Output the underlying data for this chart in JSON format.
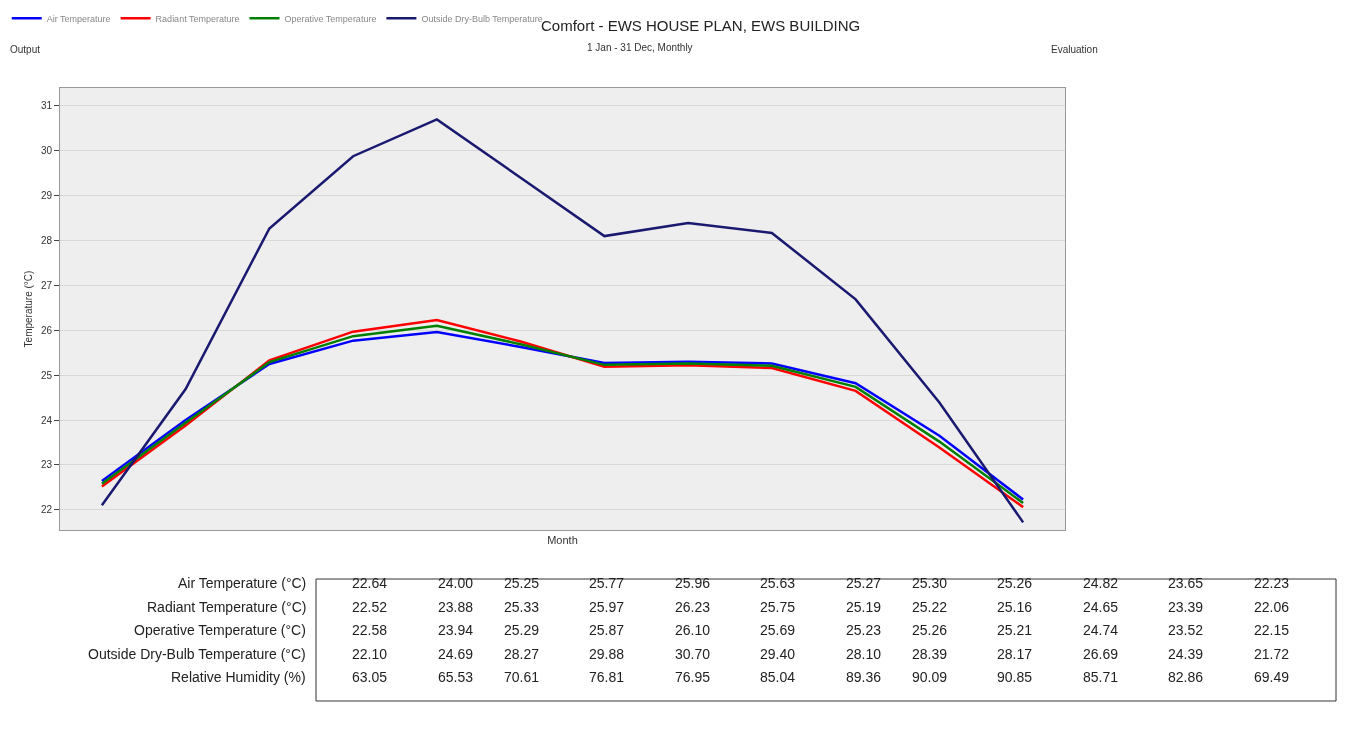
{
  "chart_data": {
    "type": "line",
    "title": "Comfort - EWS HOUSE PLAN, EWS BUILDING",
    "subtitle": "1 Jan - 31 Dec, Monthly",
    "xlabel": "Month",
    "ylabel": "Temperature (°C)",
    "annotations": [
      "Output",
      "Evaluation",
      "Air Temperature (°C)",
      "Radiant Temperature (°C)",
      "Operative Temperature (°C)",
      "Outside Dry-Bulb Temperature (°C)",
      "Relative Humidity (%)",
      "22.64",
      "24.00",
      "25.25",
      "25.77",
      "25.96",
      "25.63",
      "25.27",
      "25.30",
      "25.26",
      "24.82",
      "23.65",
      "22.23",
      "22.52",
      "23.88",
      "25.33",
      "25.97",
      "26.23",
      "25.75",
      "25.19",
      "25.22",
      "25.16",
      "24.65",
      "23.39",
      "22.06",
      "22.58",
      "23.94",
      "25.29",
      "25.87",
      "26.10",
      "25.69",
      "25.23",
      "25.26",
      "25.21",
      "24.74",
      "23.52",
      "22.15",
      "22.10",
      "24.69",
      "28.27",
      "29.88",
      "30.70",
      "29.40",
      "28.10",
      "28.39",
      "28.17",
      "26.69",
      "24.39",
      "21.72",
      "63.05",
      "65.53",
      "70.61",
      "76.81",
      "76.95",
      "85.04",
      "89.36",
      "90.09",
      "90.85",
      "85.71",
      "82.86",
      "69.49"
    ],
    "categories": [
      null,
      null,
      null,
      null,
      null,
      null,
      null,
      null,
      null,
      null,
      null,
      null
    ],
    "series": [
      {
        "name": "Air Temperature",
        "color": "#0000ff",
        "values": [
          22.64,
          24.0,
          25.25,
          25.77,
          25.96,
          25.63,
          25.27,
          25.3,
          25.26,
          24.82,
          23.65,
          22.23
        ]
      },
      {
        "name": "Radiant Temperature",
        "color": "#ff0000",
        "values": [
          22.52,
          23.88,
          25.33,
          25.97,
          26.23,
          25.75,
          25.19,
          25.22,
          25.16,
          24.65,
          23.39,
          22.06
        ]
      },
      {
        "name": "Operative Temperature",
        "color": "#008000",
        "values": [
          22.58,
          23.94,
          25.29,
          25.87,
          26.1,
          25.69,
          25.23,
          25.26,
          25.21,
          24.74,
          23.52,
          22.15
        ]
      },
      {
        "name": "Outside Dry-Bulb Temperature",
        "color": "#191970",
        "values": [
          22.1,
          24.69,
          28.27,
          29.88,
          30.7,
          29.4,
          28.1,
          28.39,
          28.17,
          26.69,
          24.39,
          21.72
        ]
      }
    ],
    "ylim": [
      21.55,
      31.4
    ],
    "yticks": [
      22,
      23,
      24,
      25,
      26,
      27,
      28,
      29,
      30,
      31
    ],
    "grid": true,
    "legend": "top left",
    "marker": "none",
    "line_style": "solid"
  }
}
